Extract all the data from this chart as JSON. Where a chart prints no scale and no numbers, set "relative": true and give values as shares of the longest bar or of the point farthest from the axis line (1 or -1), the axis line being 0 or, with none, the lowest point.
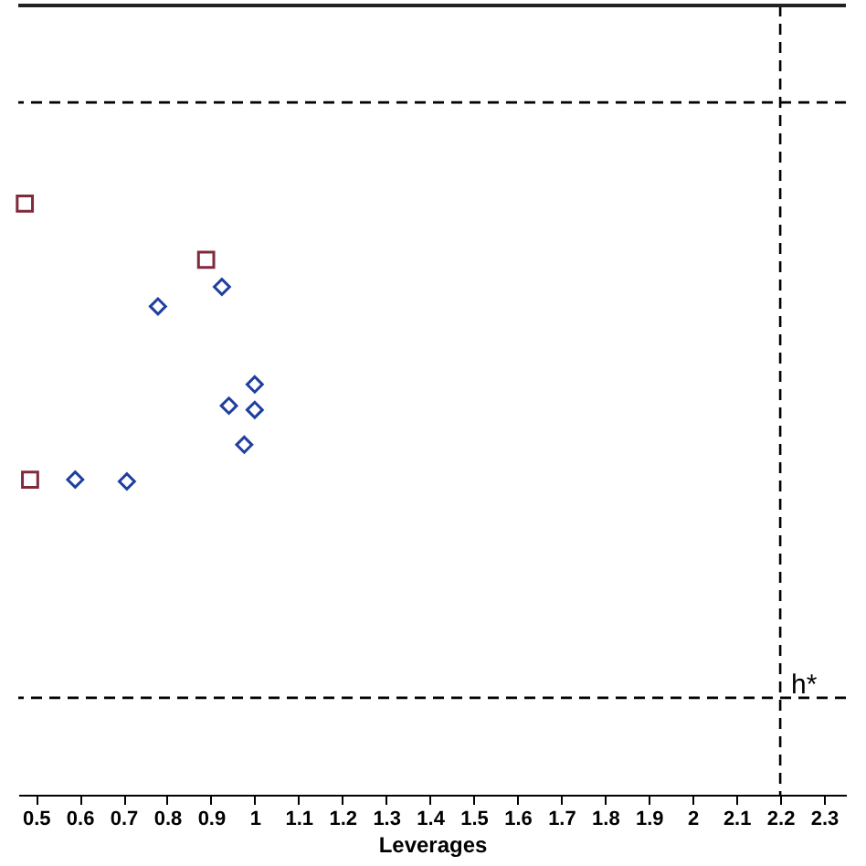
{
  "chart_data": {
    "type": "scatter",
    "xlabel": "Leverages",
    "relative": true,
    "grid": false,
    "legend": false,
    "xlim": [
      0.46,
      2.35
    ],
    "xticks": [
      0.5,
      0.6,
      0.7,
      0.8,
      0.9,
      1,
      1.1,
      1.2,
      1.3,
      1.4,
      1.5,
      1.6,
      1.7,
      1.8,
      1.9,
      2,
      2.1,
      2.2,
      2.3
    ],
    "series": [
      {
        "color": "#7f2a3a",
        "marker": "square",
        "x": [
          0.475,
          0.889,
          0.487
        ],
        "values": [
          1,
          0.905,
          0.533
        ]
      },
      {
        "color": "#1f3f9f",
        "marker": "diamond",
        "x": [
          0.779,
          0.925,
          1.0,
          0.941,
          1.0,
          0.976,
          0.59,
          0.708
        ],
        "values": [
          0.826,
          0.859,
          0.694,
          0.658,
          0.651,
          0.592,
          0.533,
          0.53
        ]
      }
    ],
    "ref_lines": [
      {
        "axis": "y",
        "value": 1.171,
        "line_style": "dashed",
        "color": "#000000"
      },
      {
        "axis": "y",
        "value": 0.164,
        "line_style": "dashed",
        "color": "#000000"
      },
      {
        "axis": "x",
        "value": 2.2,
        "label": "h*",
        "line_style": "dashed",
        "color": "#000000"
      }
    ]
  }
}
